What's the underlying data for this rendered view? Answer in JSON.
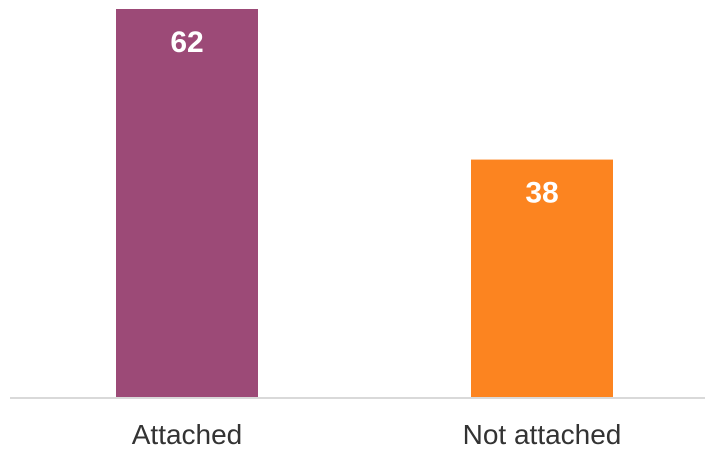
{
  "chart_data": {
    "type": "bar",
    "categories": [
      "Attached",
      "Not attached"
    ],
    "values": [
      62,
      38
    ],
    "colors": [
      "#9c4a77",
      "#fc8420"
    ],
    "title": "",
    "xlabel": "",
    "ylabel": "",
    "ylim": [
      0,
      62
    ],
    "grid": false,
    "legend": "none",
    "data_labels": [
      "62",
      "38"
    ]
  }
}
